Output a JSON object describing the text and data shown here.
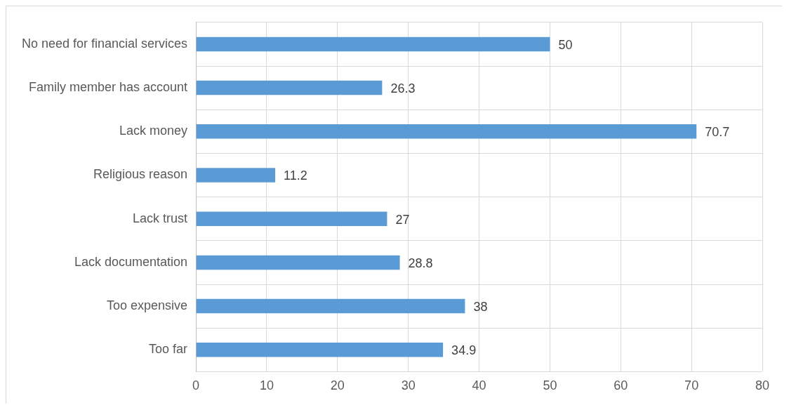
{
  "chart_data": {
    "type": "bar",
    "orientation": "horizontal",
    "categories": [
      "No need for financial services",
      "Family member has account",
      "Lack money",
      "Religious reason",
      "Lack trust",
      "Lack documentation",
      "Too expensive",
      "Too far"
    ],
    "values": [
      50,
      26.3,
      70.7,
      11.2,
      27,
      28.8,
      38,
      34.9
    ],
    "color": "#5b9bd5",
    "xlim": [
      0,
      80
    ],
    "xticks": [
      0,
      10,
      20,
      30,
      40,
      50,
      60,
      70,
      80
    ],
    "grid": true,
    "data_labels": true,
    "legend": false
  }
}
